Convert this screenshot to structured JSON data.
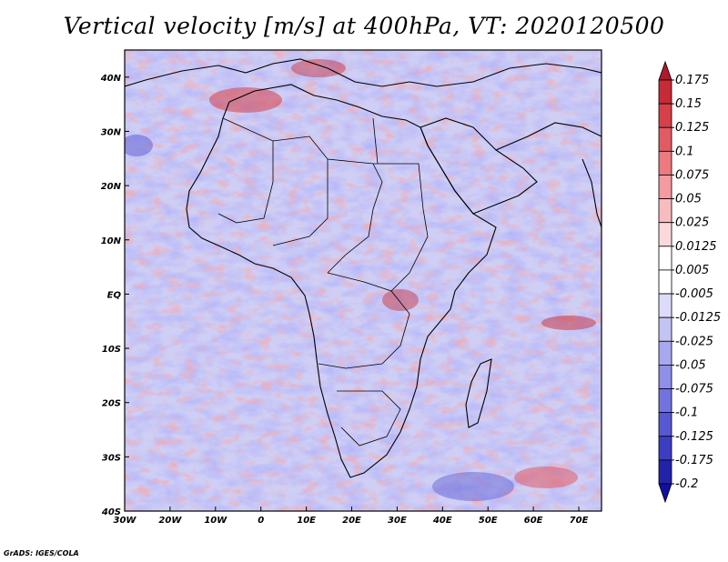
{
  "title": "Vertical velocity [m/s] at 400hPa, VT: 2020120500",
  "credit": "GrADS: IGES/COLA",
  "map": {
    "lat_ticks": [
      "40N",
      "30N",
      "20N",
      "10N",
      "EQ",
      "10S",
      "20S",
      "30S",
      "40S"
    ],
    "lon_ticks": [
      "30W",
      "20W",
      "10W",
      "0",
      "10E",
      "20E",
      "30E",
      "40E",
      "50E",
      "60E",
      "70E"
    ],
    "lon_range": [
      -30,
      75
    ],
    "lat_range": [
      -40,
      45
    ]
  },
  "colorbar": {
    "levels": [
      "0.175",
      "0.15",
      "0.125",
      "0.1",
      "0.075",
      "0.05",
      "0.025",
      "0.0125",
      "0.005",
      "-0.005",
      "-0.0125",
      "-0.025",
      "-0.05",
      "-0.075",
      "-0.1",
      "-0.125",
      "-0.175",
      "-0.2"
    ],
    "colors": [
      "#b2182b",
      "#c62b36",
      "#d6404a",
      "#e25b63",
      "#ec7a80",
      "#f39ba0",
      "#f8bcbf",
      "#fbd9db",
      "#ffffff",
      "#ffffff",
      "#dcdcfa",
      "#c3c3f4",
      "#a8a8ee",
      "#8f8fe7",
      "#7373df",
      "#5858d2",
      "#3d3dc2",
      "#2222aa",
      "#1010a0"
    ]
  }
}
